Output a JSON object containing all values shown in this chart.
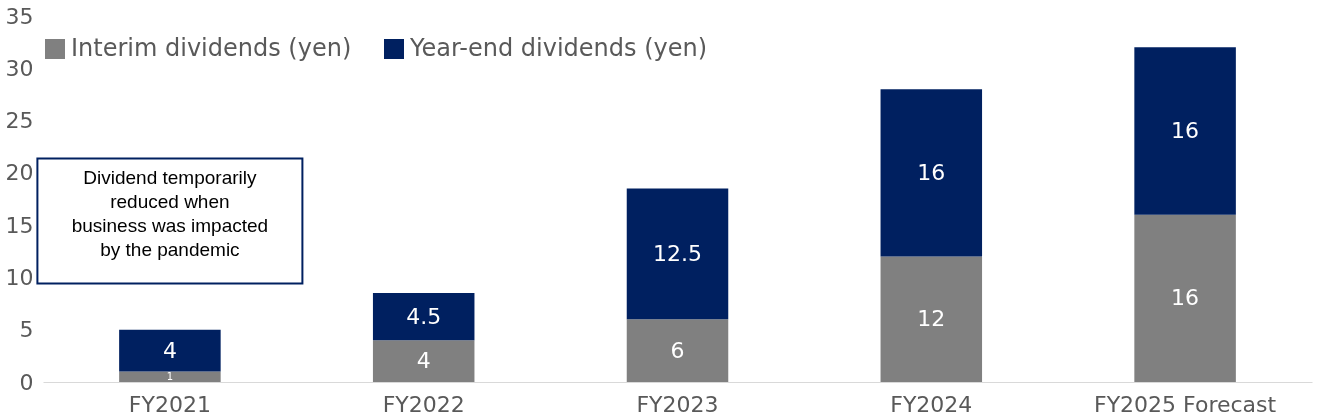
{
  "chart_data": {
    "type": "bar",
    "stacked": true,
    "categories": [
      "FY2021",
      "FY2022",
      "FY2023",
      "FY2024",
      "FY2025 Forecast"
    ],
    "series": [
      {
        "name": "Interim dividends (yen)",
        "color": "#808080",
        "values": [
          1,
          4,
          6,
          12,
          16
        ]
      },
      {
        "name": "Year-end dividends (yen)",
        "color": "#002060",
        "values": [
          4,
          4.5,
          12.5,
          16,
          16
        ]
      }
    ],
    "ylim": [
      0,
      35
    ],
    "yticks": [
      0,
      5,
      10,
      15,
      20,
      25,
      30,
      35
    ],
    "grid": false,
    "legend": "top",
    "data_labels": true,
    "annotations": [
      "Dividend temporarily\nreduced when\nbusiness was impacted\nby the pandemic"
    ]
  }
}
